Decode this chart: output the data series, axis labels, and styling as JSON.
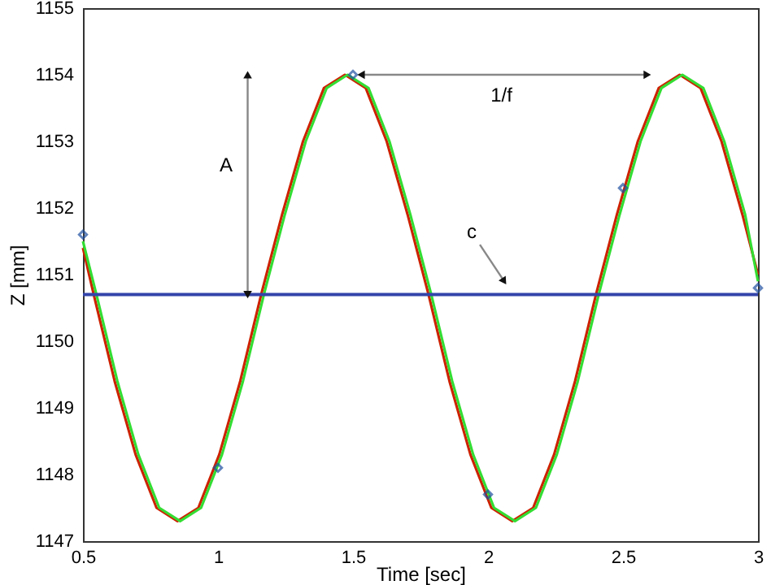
{
  "chart_data": {
    "type": "line",
    "xlabel": "Time [sec]",
    "ylabel": "Z [mm]",
    "xlim": [
      0.5,
      3
    ],
    "ylim": [
      1147,
      1155
    ],
    "xticks": [
      0.5,
      1,
      1.5,
      2,
      2.5,
      3
    ],
    "yticks": [
      1147,
      1148,
      1149,
      1150,
      1151,
      1152,
      1153,
      1154,
      1155
    ],
    "grid": false,
    "series": [
      {
        "color": "#cc2200",
        "x": [
          0.5,
          0.54,
          0.6175,
          0.695,
          0.7725,
          0.85,
          0.9275,
          1.005,
          1.0825,
          1.16,
          1.2375,
          1.315,
          1.3925,
          1.47,
          1.5475,
          1.625,
          1.7025,
          1.78,
          1.8575,
          1.935,
          2.0125,
          2.09,
          2.1675,
          2.245,
          2.3225,
          2.4,
          2.4775,
          2.555,
          2.6325,
          2.71,
          2.7875,
          2.865,
          2.9425,
          3.0
        ],
        "values": [
          1151.4,
          1150.7,
          1149.4,
          1148.3,
          1147.5,
          1147.3,
          1147.5,
          1148.3,
          1149.4,
          1150.7,
          1151.9,
          1153.0,
          1153.8,
          1154.0,
          1153.8,
          1153.0,
          1151.9,
          1150.7,
          1149.4,
          1148.3,
          1147.5,
          1147.3,
          1147.5,
          1148.3,
          1149.4,
          1150.7,
          1151.9,
          1153.0,
          1153.8,
          1154.0,
          1153.8,
          1153.0,
          1151.9,
          1151.0
        ]
      },
      {
        "color": "#33dd33",
        "x": [
          0.5,
          0.55,
          0.6275,
          0.705,
          0.7825,
          0.86,
          0.9375,
          1.015,
          1.0925,
          1.17,
          1.2475,
          1.325,
          1.4025,
          1.48,
          1.5575,
          1.635,
          1.7125,
          1.79,
          1.8675,
          1.945,
          2.0225,
          2.1,
          2.1775,
          2.255,
          2.3325,
          2.41,
          2.4875,
          2.565,
          2.6425,
          2.72,
          2.7975,
          2.875,
          2.9525,
          3.0
        ],
        "values": [
          1151.5,
          1150.7,
          1149.4,
          1148.3,
          1147.5,
          1147.3,
          1147.5,
          1148.3,
          1149.4,
          1150.7,
          1151.9,
          1153.0,
          1153.8,
          1154.0,
          1153.8,
          1153.0,
          1151.9,
          1150.7,
          1149.4,
          1148.3,
          1147.5,
          1147.3,
          1147.5,
          1148.3,
          1149.4,
          1150.7,
          1151.9,
          1153.0,
          1153.8,
          1154.0,
          1153.8,
          1153.0,
          1151.9,
          1150.9
        ]
      },
      {
        "type": "scatter",
        "color": "#1f4fa0",
        "marker": "diamond",
        "x": [
          0.5,
          1,
          1.5,
          2,
          2.5,
          3
        ],
        "values": [
          1151.6,
          1148.1,
          1154.0,
          1147.7,
          1152.3,
          1150.8
        ]
      }
    ],
    "ref_lines": [
      {
        "axis": "y",
        "value": 1150.7,
        "color": "#3344aa"
      }
    ],
    "annotations": [
      "A",
      "1/f",
      "c"
    ]
  }
}
